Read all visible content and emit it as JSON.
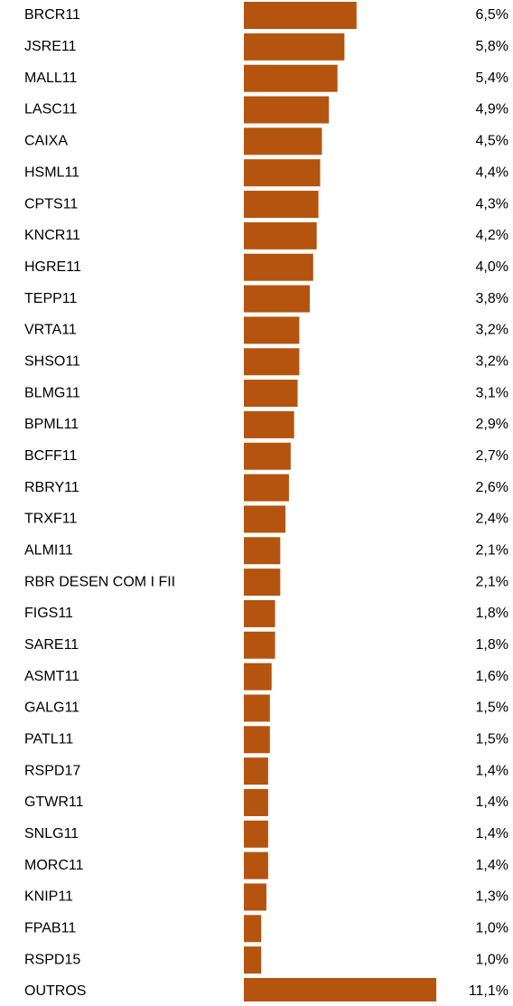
{
  "chart_data": {
    "type": "hbar",
    "color": "#b5540f",
    "categories": [
      "BRCR11",
      "JSRE11",
      "MALL11",
      "LASC11",
      "CAIXA",
      "HSML11",
      "CPTS11",
      "KNCR11",
      "HGRE11",
      "TEPP11",
      "VRTA11",
      "SHSO11",
      "BLMG11",
      "BPML11",
      "BCFF11",
      "RBRY11",
      "TRXF11",
      "ALMI11",
      "RBR DESEN COM I FII",
      "FIGS11",
      "SARE11",
      "ASMT11",
      "GALG11",
      "PATL11",
      "RSPD17",
      "GTWR11",
      "SNLG11",
      "MORC11",
      "KNIP11",
      "FPAB11",
      "RSPD15",
      "OUTROS"
    ],
    "values": [
      6.5,
      5.8,
      5.4,
      4.9,
      4.5,
      4.4,
      4.3,
      4.2,
      4.0,
      3.8,
      3.2,
      3.2,
      3.1,
      2.9,
      2.7,
      2.6,
      2.4,
      2.1,
      2.1,
      1.8,
      1.8,
      1.6,
      1.5,
      1.5,
      1.4,
      1.4,
      1.4,
      1.4,
      1.3,
      1.0,
      1.0,
      11.1
    ],
    "value_labels": [
      "6,5%",
      "5,8%",
      "5,4%",
      "4,9%",
      "4,5%",
      "4,4%",
      "4,3%",
      "4,2%",
      "4,0%",
      "3,8%",
      "3,2%",
      "3,2%",
      "3,1%",
      "2,9%",
      "2,7%",
      "2,6%",
      "2,4%",
      "2,1%",
      "2,1%",
      "1,8%",
      "1,8%",
      "1,6%",
      "1,5%",
      "1,5%",
      "1,4%",
      "1,4%",
      "1,4%",
      "1,4%",
      "1,3%",
      "1,0%",
      "1,0%",
      "11,1%"
    ]
  }
}
